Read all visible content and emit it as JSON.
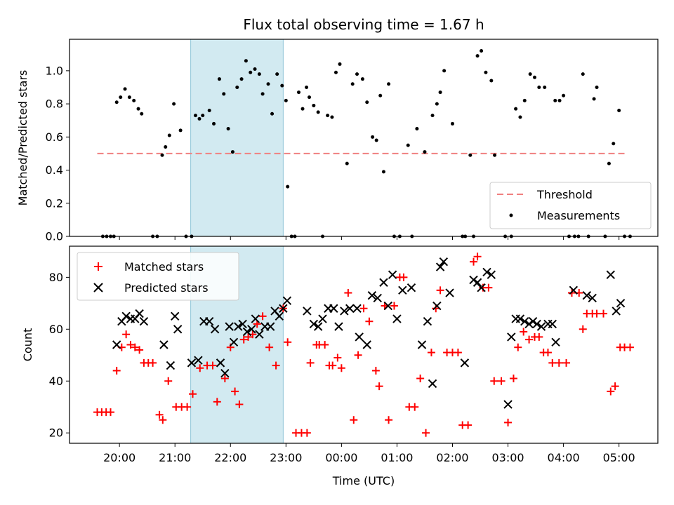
{
  "chart_data": {
    "title": "Flux total observing time = 1.67 h",
    "xlabel": "Time (UTC)",
    "x_ticks": [
      "20:00",
      "21:00",
      "22:00",
      "23:00",
      "00:00",
      "01:00",
      "02:00",
      "03:00",
      "04:00",
      "05:00"
    ],
    "x_unit": "hours since 00:00 UTC (negative = previous evening)",
    "xlim": [
      -4.9,
      5.7
    ],
    "highlight_span": {
      "start": "21:17",
      "end": "22:57",
      "color": "#add8e6"
    },
    "charts": [
      {
        "type": "scatter",
        "ylabel": "Matched/Predicted stars",
        "ylim": [
          0,
          1.19
        ],
        "y_ticks": [
          "0.0",
          "0.2",
          "0.4",
          "0.6",
          "0.8",
          "1.0"
        ],
        "threshold": {
          "name": "Threshold",
          "value": 0.5,
          "x_range": [
            -4.4,
            5.15
          ],
          "color": "#f08080",
          "style": "dashed"
        },
        "series": [
          {
            "name": "Measurements",
            "color": "#000000",
            "marker": "dot",
            "x": [
              -4.3,
              -4.23,
              -4.16,
              -4.1,
              -4.05,
              -3.98,
              -3.9,
              -3.82,
              -3.74,
              -3.66,
              -3.6,
              -3.4,
              -3.32,
              -3.23,
              -3.17,
              -3.1,
              -3.02,
              -2.9,
              -2.8,
              -2.7,
              -2.63,
              -2.56,
              -2.5,
              -2.38,
              -2.3,
              -2.2,
              -2.12,
              -2.04,
              -1.96,
              -1.88,
              -1.8,
              -1.72,
              -1.64,
              -1.56,
              -1.48,
              -1.42,
              -1.32,
              -1.25,
              -1.16,
              -1.07,
              -1.0,
              -0.97,
              -0.9,
              -0.84,
              -0.77,
              -0.7,
              -0.63,
              -0.58,
              -0.5,
              -0.42,
              -0.34,
              -0.25,
              -0.17,
              -0.1,
              -0.03,
              0.1,
              0.2,
              0.28,
              0.38,
              0.46,
              0.56,
              0.63,
              0.7,
              0.76,
              0.85,
              0.95,
              1.05,
              1.2,
              1.27,
              1.36,
              1.5,
              1.64,
              1.72,
              1.78,
              1.85,
              2.0,
              2.18,
              2.23,
              2.32,
              2.38,
              2.45,
              2.52,
              2.6,
              2.7,
              2.76,
              2.95,
              3.06,
              3.14,
              3.22,
              3.3,
              3.4,
              3.48,
              3.56,
              3.66,
              3.85,
              3.93,
              4.0,
              4.1,
              4.2,
              4.27,
              4.35,
              4.45,
              4.55,
              4.6,
              4.75,
              4.82,
              4.9,
              5.0,
              5.1,
              5.2
            ],
            "y": [
              0.0,
              0.0,
              0.0,
              0.0,
              0.81,
              0.84,
              0.89,
              0.84,
              0.82,
              0.77,
              0.74,
              0.0,
              0.0,
              0.49,
              0.54,
              0.61,
              0.8,
              0.64,
              0.0,
              0.0,
              0.73,
              0.71,
              0.73,
              0.76,
              0.68,
              0.95,
              0.86,
              0.65,
              0.51,
              0.9,
              0.95,
              1.06,
              0.99,
              1.01,
              0.98,
              0.86,
              0.92,
              0.74,
              0.98,
              0.91,
              0.82,
              0.3,
              0.0,
              0.0,
              0.87,
              0.77,
              0.9,
              0.84,
              0.79,
              0.75,
              0.0,
              0.73,
              0.72,
              0.99,
              1.04,
              0.44,
              0.92,
              0.98,
              0.95,
              0.81,
              0.6,
              0.58,
              0.85,
              0.39,
              0.92,
              0.0,
              0.0,
              0.55,
              0.0,
              0.65,
              0.51,
              0.73,
              0.8,
              0.87,
              1.0,
              0.68,
              0.0,
              0.0,
              0.49,
              0.0,
              1.09,
              1.12,
              0.99,
              0.94,
              0.49,
              0.0,
              0.0,
              0.77,
              0.72,
              0.82,
              0.98,
              0.96,
              0.9,
              0.9,
              0.82,
              0.82,
              0.85,
              0.0,
              0.0,
              0.0,
              0.98,
              0.0,
              0.83,
              0.9,
              0.0,
              0.44,
              0.56,
              0.76,
              0.0,
              0.0
            ]
          }
        ]
      },
      {
        "type": "scatter",
        "ylabel": "Count",
        "ylim": [
          16,
          92
        ],
        "y_ticks": [
          "20",
          "40",
          "60",
          "80"
        ],
        "series": [
          {
            "name": "Matched stars",
            "color": "#ff0000",
            "marker": "plus",
            "x": [
              -4.4,
              -4.32,
              -4.24,
              -4.16,
              -4.05,
              -3.96,
              -3.88,
              -3.8,
              -3.72,
              -3.64,
              -3.56,
              -3.48,
              -3.4,
              -3.28,
              -3.22,
              -3.12,
              -2.98,
              -2.88,
              -2.78,
              -2.68,
              -2.55,
              -2.42,
              -2.32,
              -2.24,
              -2.1,
              -2.0,
              -1.92,
              -1.84,
              -1.76,
              -1.68,
              -1.6,
              -1.52,
              -1.42,
              -1.3,
              -1.18,
              -1.05,
              -0.97,
              -0.82,
              -0.72,
              -0.62,
              -0.56,
              -0.45,
              -0.4,
              -0.3,
              -0.22,
              -0.16,
              -0.07,
              0.0,
              0.12,
              0.22,
              0.3,
              0.4,
              0.5,
              0.62,
              0.68,
              0.78,
              0.85,
              0.95,
              1.05,
              1.12,
              1.22,
              1.32,
              1.42,
              1.52,
              1.62,
              1.7,
              1.78,
              1.9,
              2.0,
              2.1,
              2.18,
              2.28,
              2.38,
              2.45,
              2.55,
              2.65,
              2.75,
              2.88,
              3.0,
              3.1,
              3.18,
              3.28,
              3.38,
              3.48,
              3.56,
              3.64,
              3.72,
              3.8,
              3.92,
              4.05,
              4.15,
              4.28,
              4.35,
              4.42,
              4.52,
              4.6,
              4.72,
              4.85,
              4.93,
              5.02,
              5.1,
              5.2
            ],
            "y": [
              28,
              28,
              28,
              28,
              44,
              53,
              58,
              54,
              53,
              52,
              47,
              47,
              47,
              27,
              25,
              40,
              30,
              30,
              30,
              35,
              45,
              46,
              46,
              32,
              41,
              53,
              36,
              31,
              56,
              57,
              58,
              62,
              65,
              53,
              46,
              68,
              55,
              20,
              20,
              20,
              47,
              54,
              54,
              54,
              46,
              46,
              49,
              45,
              74,
              25,
              50,
              68,
              63,
              44,
              38,
              69,
              25,
              69,
              80,
              80,
              30,
              30,
              41,
              20,
              51,
              68,
              75,
              51,
              51,
              51,
              23,
              23,
              86,
              88,
              76,
              76,
              40,
              40,
              24,
              41,
              53,
              59,
              56,
              57,
              57,
              51,
              51,
              47,
              47,
              47,
              74,
              74,
              60,
              66,
              66,
              66,
              66,
              36,
              38,
              53,
              53,
              53
            ]
          },
          {
            "name": "Predicted stars",
            "color": "#000000",
            "marker": "x",
            "x": [
              -4.05,
              -3.96,
              -3.88,
              -3.8,
              -3.72,
              -3.64,
              -3.56,
              -3.2,
              -3.08,
              -3.0,
              -2.95,
              -2.7,
              -2.58,
              -2.48,
              -2.38,
              -2.28,
              -2.18,
              -2.1,
              -2.02,
              -1.94,
              -1.86,
              -1.78,
              -1.7,
              -1.62,
              -1.55,
              -1.48,
              -1.38,
              -1.28,
              -1.2,
              -1.12,
              -1.05,
              -0.98,
              -0.62,
              -0.5,
              -0.42,
              -0.34,
              -0.24,
              -0.14,
              -0.05,
              0.05,
              0.15,
              0.28,
              0.32,
              0.46,
              0.55,
              0.65,
              0.76,
              0.84,
              0.92,
              1.0,
              1.1,
              1.26,
              1.45,
              1.55,
              1.64,
              1.72,
              1.78,
              1.84,
              1.95,
              2.22,
              2.38,
              2.45,
              2.52,
              2.62,
              2.7,
              3.0,
              3.06,
              3.14,
              3.22,
              3.3,
              3.38,
              3.45,
              3.52,
              3.6,
              3.72,
              3.8,
              3.86,
              4.18,
              4.42,
              4.52,
              4.85,
              4.95,
              5.03
            ],
            "y": [
              54,
              63,
              65,
              64,
              64,
              66,
              63,
              54,
              46,
              65,
              60,
              47,
              48,
              63,
              63,
              60,
              47,
              43,
              61,
              55,
              61,
              62,
              59,
              60,
              64,
              58,
              61,
              61,
              67,
              65,
              68,
              71,
              67,
              62,
              61,
              64,
              68,
              68,
              61,
              67,
              68,
              68,
              57,
              54,
              73,
              72,
              78,
              69,
              81,
              64,
              75,
              76,
              54,
              63,
              39,
              69,
              84,
              86,
              74,
              47,
              79,
              78,
              76,
              82,
              81,
              31,
              57,
              64,
              64,
              63,
              62,
              63,
              62,
              61,
              62,
              62,
              55,
              75,
              73,
              72,
              81,
              67,
              70
            ]
          }
        ]
      }
    ]
  }
}
